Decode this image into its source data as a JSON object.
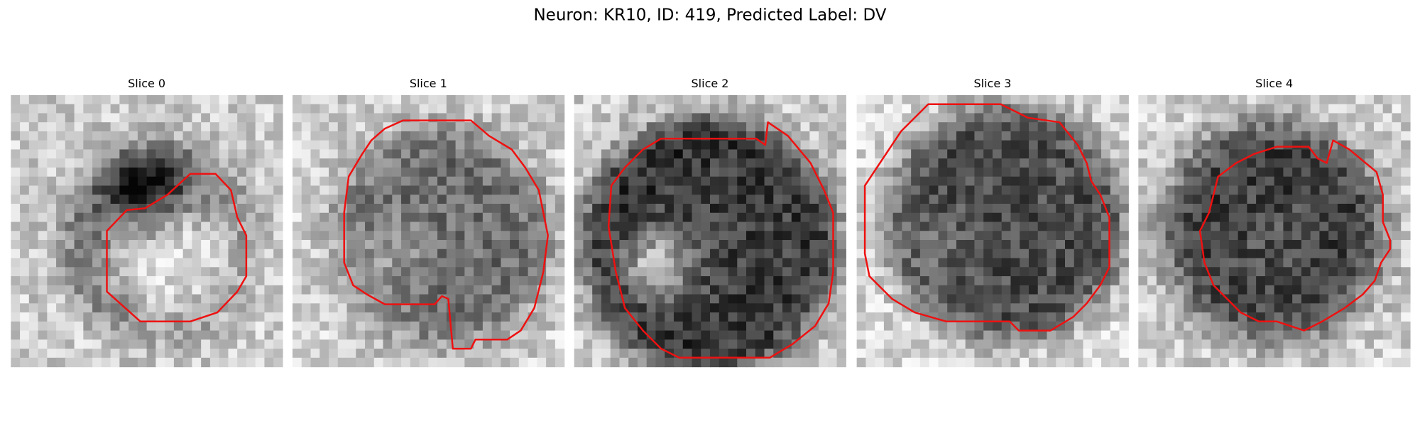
{
  "figure": {
    "title": "Neuron: KR10, ID: 419, Predicted Label: DV",
    "panels": [
      {
        "title": "Slice 0"
      },
      {
        "title": "Slice 1"
      },
      {
        "title": "Slice 2"
      },
      {
        "title": "Slice 3"
      },
      {
        "title": "Slice 4"
      }
    ]
  }
}
